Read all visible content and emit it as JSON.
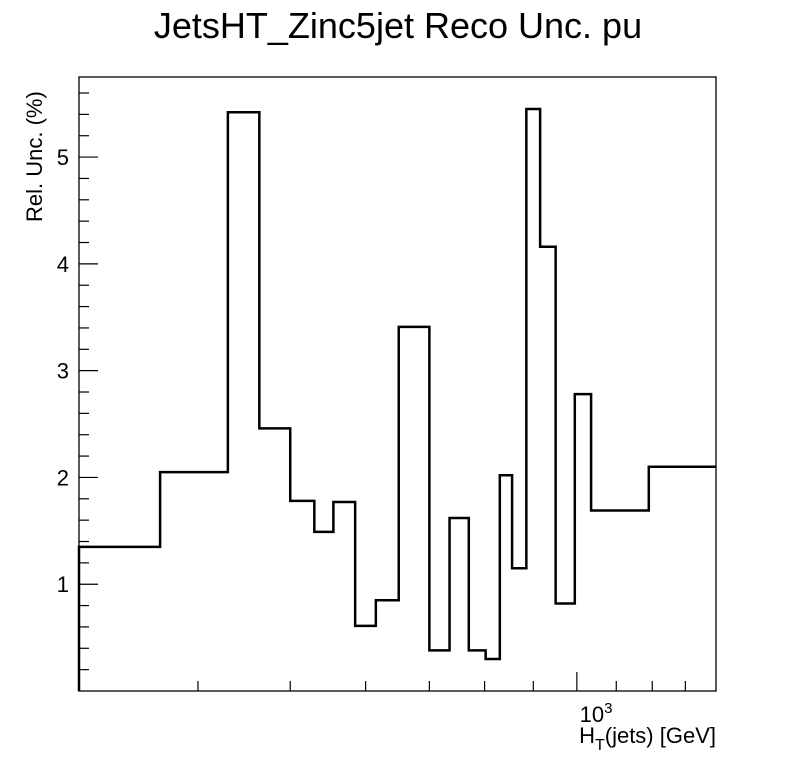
{
  "chart_data": {
    "type": "step-histogram",
    "title": "JetsHT_Zinc5jet Reco Unc. pu",
    "xlabel_main": "H",
    "xlabel_sub": "T",
    "xlabel_rest": "(jets) [GeV]",
    "ylabel": "Rel. Unc. (%)",
    "x_scale": "log",
    "x_tick_base": "10",
    "x_tick_exp": "3",
    "xlim": [
      300,
      1400
    ],
    "ylim": [
      0,
      5.75
    ],
    "y_ticks": [
      1,
      2,
      3,
      4,
      5
    ],
    "y_tick_labels": [
      "1",
      "2",
      "3",
      "4",
      "5"
    ],
    "bin_edges": [
      300,
      365,
      430,
      464,
      500,
      530,
      555,
      585,
      615,
      650,
      700,
      735,
      770,
      802,
      830,
      855,
      885,
      915,
      950,
      995,
      1035,
      1190,
      1400
    ],
    "values": [
      1.35,
      2.05,
      5.42,
      2.46,
      1.78,
      1.49,
      1.77,
      0.61,
      0.85,
      3.41,
      0.38,
      1.62,
      0.38,
      0.3,
      2.02,
      1.15,
      5.45,
      4.16,
      0.82,
      2.78,
      1.69,
      2.1
    ],
    "line_color": "#000000"
  }
}
